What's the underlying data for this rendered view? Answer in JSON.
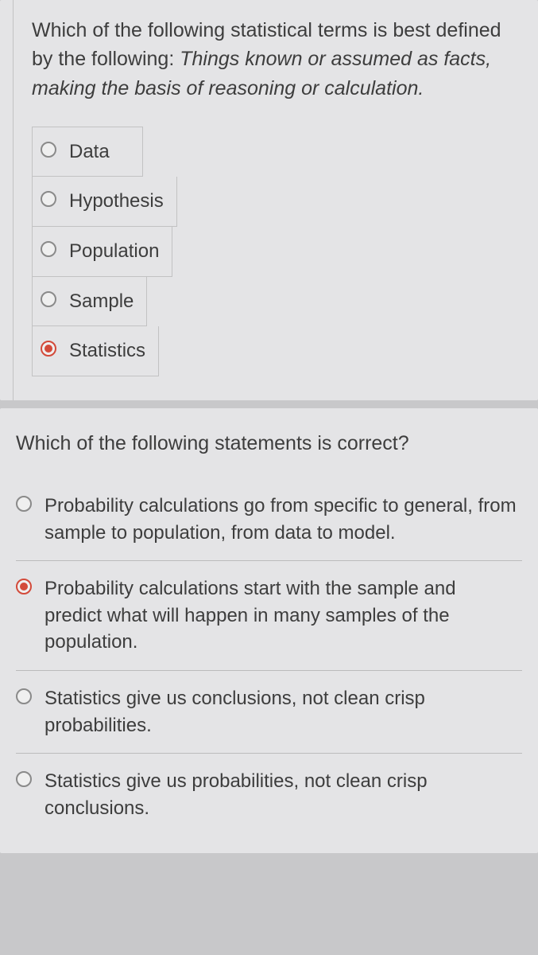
{
  "q1": {
    "prompt_plain": "Which of the following statistical terms is best defined by the following: ",
    "prompt_italic": "Things known or assumed as facts, making the basis of reasoning or calculation.",
    "options": [
      {
        "label": "Data",
        "selected": false
      },
      {
        "label": "Hypothesis",
        "selected": false
      },
      {
        "label": "Population",
        "selected": false
      },
      {
        "label": "Sample",
        "selected": false
      },
      {
        "label": "Statistics",
        "selected": true
      }
    ]
  },
  "q2": {
    "prompt": "Which of the following statements is correct?",
    "options": [
      {
        "label": "Probability calculations go from specific to general, from sample to population, from data to model.",
        "selected": false
      },
      {
        "label": "Probability calculations start with the sample and predict what will happen in many samples of the population.",
        "selected": true
      },
      {
        "label": "Statistics give us conclusions, not clean crisp probabilities.",
        "selected": false
      },
      {
        "label": "Statistics give us probabilities, not clean crisp conclusions.",
        "selected": false
      }
    ]
  },
  "colors": {
    "background": "#c8c8ca",
    "card": "#e4e4e6",
    "text": "#3d3d3d",
    "radio_border": "#8a8a8a",
    "radio_selected": "#d34a3a",
    "divider": "rgba(0,0,0,0.18)"
  }
}
